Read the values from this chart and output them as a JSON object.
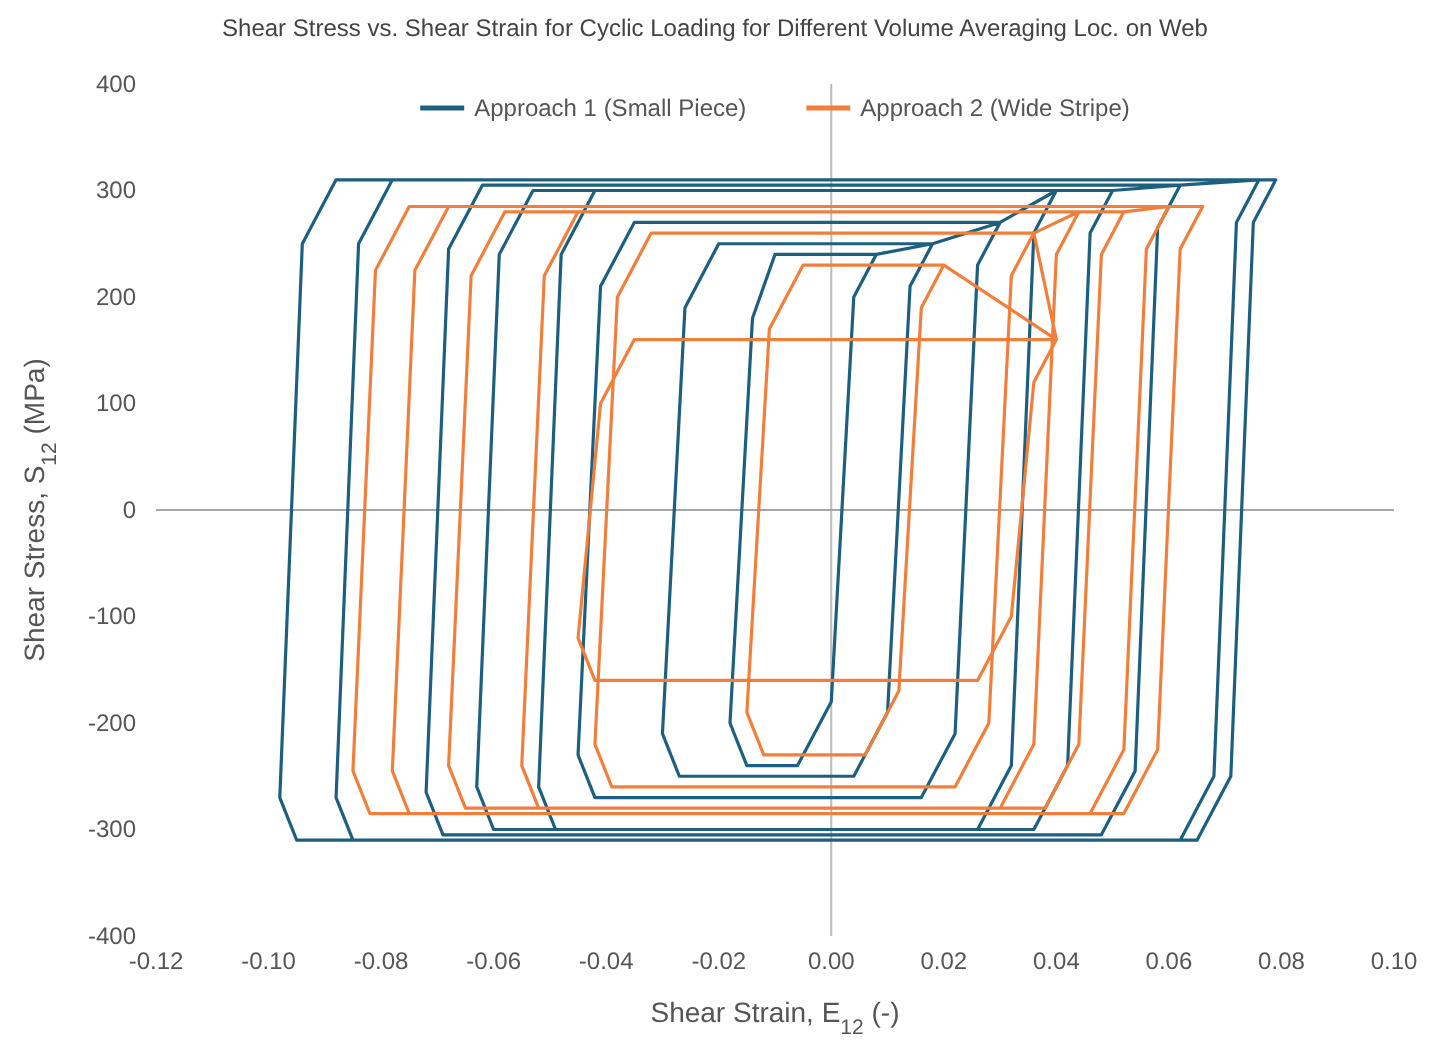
{
  "chart_data": {
    "type": "line",
    "title": "Shear Stress vs. Shear Strain for Cyclic Loading for Different Volume Averaging Loc. on Web",
    "xlabel": "Shear Strain, E$_{12}$ (-)",
    "ylabel": "Shear Stress, S$_{12}$ (MPa)",
    "xlim": [
      -0.12,
      0.1
    ],
    "xticks": [
      {
        "value": -0.12,
        "label": "-0.12"
      },
      {
        "value": -0.1,
        "label": "-0.10"
      },
      {
        "value": -0.08,
        "label": "-0.08"
      },
      {
        "value": -0.06,
        "label": "-0.06"
      },
      {
        "value": -0.04,
        "label": "-0.04"
      },
      {
        "value": -0.02,
        "label": "-0.02"
      },
      {
        "value": 0,
        "label": "0.00"
      },
      {
        "value": 0.02,
        "label": "0.02"
      },
      {
        "value": 0.04,
        "label": "0.04"
      },
      {
        "value": 0.06,
        "label": "0.06"
      },
      {
        "value": 0.08,
        "label": "0.08"
      },
      {
        "value": 0.1,
        "label": "0.10"
      }
    ],
    "ylim": [
      -400,
      400
    ],
    "yticks": [
      -400,
      -300,
      -200,
      -100,
      0,
      100,
      200,
      300,
      400
    ],
    "grid": false,
    "ref_lines": [
      {
        "axis": "x",
        "value": 0,
        "color": "#bbbbbb"
      },
      {
        "axis": "y",
        "value": 0,
        "color": "#a6a6a6"
      }
    ],
    "legend": "top",
    "marker": "none",
    "line_style": "solid",
    "series": [
      {
        "name": "Approach 1 (Small Piece)",
        "color": "#1d5f7f",
        "x": [
          0.079,
          0.075,
          0.071,
          0.065,
          -0.095,
          -0.098,
          -0.094,
          -0.088,
          0.079,
          0.076,
          0.072,
          0.068,
          0.062,
          -0.085,
          -0.088,
          -0.084,
          -0.078,
          0.076,
          0.062,
          0.058,
          0.054,
          0.048,
          -0.069,
          -0.072,
          -0.068,
          -0.062,
          0.062,
          0.05,
          0.046,
          0.042,
          0.036,
          -0.06,
          -0.063,
          -0.059,
          -0.053,
          0.05,
          0.04,
          0.036,
          0.032,
          0.026,
          -0.049,
          -0.052,
          -0.048,
          -0.042,
          0.04,
          0.03,
          0.026,
          0.022,
          0.016,
          -0.042,
          -0.045,
          -0.041,
          -0.035,
          0.03,
          0.018,
          0.014,
          0.01,
          0.004,
          -0.027,
          -0.03,
          -0.026,
          -0.02,
          0.018,
          0.008,
          0.004,
          0,
          -0.006,
          -0.015,
          -0.018,
          -0.014,
          -0.01,
          0.008
        ],
        "values": [
          310,
          270,
          -250,
          -310,
          -310,
          -270,
          250,
          310,
          310,
          310,
          270,
          -250,
          -310,
          -310,
          -270,
          250,
          310,
          310,
          305,
          265,
          -245,
          -305,
          -305,
          -265,
          245,
          305,
          305,
          300,
          260,
          -240,
          -300,
          -300,
          -260,
          240,
          300,
          300,
          300,
          260,
          -240,
          -300,
          -300,
          -260,
          240,
          300,
          300,
          270,
          230,
          -210,
          -270,
          -270,
          -230,
          210,
          270,
          270,
          250,
          210,
          -190,
          -250,
          -250,
          -210,
          190,
          250,
          250,
          240,
          200,
          -180,
          -240,
          -240,
          -200,
          180,
          240,
          240
        ]
      },
      {
        "name": "Approach 2 (Wide Stripe)",
        "color": "#f07f3c",
        "x": [
          0.066,
          0.062,
          0.058,
          0.052,
          -0.082,
          -0.085,
          -0.081,
          -0.075,
          0.066,
          0.06,
          0.056,
          0.052,
          0.046,
          -0.075,
          -0.078,
          -0.074,
          -0.068,
          0.06,
          0.052,
          0.048,
          0.044,
          0.038,
          -0.065,
          -0.068,
          -0.064,
          -0.058,
          0.052,
          0.044,
          0.04,
          0.036,
          0.03,
          -0.052,
          -0.055,
          -0.051,
          -0.045,
          0.044,
          0.036,
          0.032,
          0.028,
          0.022,
          -0.039,
          -0.042,
          -0.038,
          -0.032,
          0.036,
          0.04,
          0.036,
          0.032,
          0.026,
          -0.042,
          -0.045,
          -0.041,
          -0.035,
          0.04,
          0.02,
          0.016,
          0.012,
          0.006,
          -0.012,
          -0.015,
          -0.011,
          -0.005,
          0.02
        ],
        "values": [
          285,
          245,
          -225,
          -285,
          -285,
          -245,
          225,
          285,
          285,
          285,
          245,
          -225,
          -285,
          -285,
          -245,
          225,
          285,
          285,
          280,
          240,
          -220,
          -280,
          -280,
          -240,
          220,
          280,
          280,
          280,
          240,
          -220,
          -280,
          -280,
          -240,
          220,
          280,
          280,
          260,
          220,
          -200,
          -260,
          -260,
          -220,
          200,
          260,
          260,
          160,
          120,
          -100,
          -160,
          -160,
          -120,
          100,
          160,
          160,
          230,
          190,
          -170,
          -230,
          -230,
          -190,
          170,
          230,
          230
        ]
      }
    ]
  }
}
